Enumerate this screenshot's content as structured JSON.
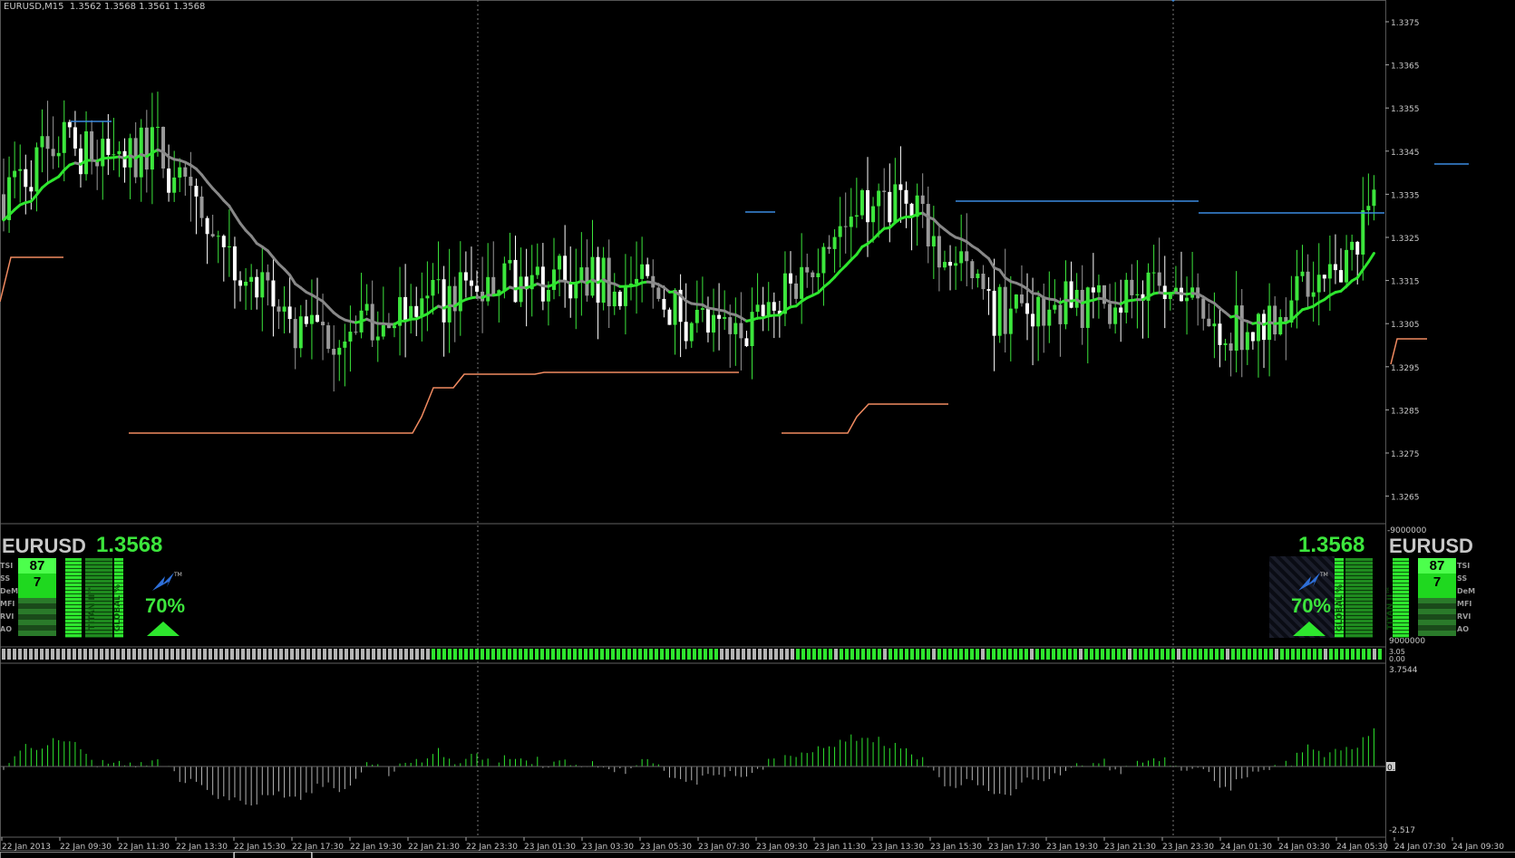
{
  "header": {
    "symbol_tf": "EURUSD,M15",
    "ohlc": "1.3562 1.3568 1.3561 1.3568"
  },
  "price_axis": [
    "1.3375",
    "1.3365",
    "1.3355",
    "1.3345",
    "1.3335",
    "1.3325",
    "1.3315",
    "1.3305",
    "1.3295",
    "1.3285",
    "1.3275",
    "1.3265"
  ],
  "mid_axis": {
    "top": "-9000000",
    "bottom": "9000000"
  },
  "strip_axis": [
    "3.05",
    "0.00"
  ],
  "osc_axis": {
    "top": "3.7544",
    "zero": "0.00",
    "bottom": "-2.517"
  },
  "time_axis": [
    "22 Jan 2013",
    "22 Jan 09:30",
    "22 Jan 11:30",
    "22 Jan 13:30",
    "22 Jan 15:30",
    "22 Jan 17:30",
    "22 Jan 19:30",
    "22 Jan 21:30",
    "22 Jan 23:30",
    "23 Jan 01:30",
    "23 Jan 03:30",
    "23 Jan 05:30",
    "23 Jan 07:30",
    "23 Jan 09:30",
    "23 Jan 11:30",
    "23 Jan 13:30",
    "23 Jan 15:30",
    "23 Jan 17:30",
    "23 Jan 19:30",
    "23 Jan 21:30",
    "23 Jan 23:30",
    "24 Jan 01:30",
    "24 Jan 03:30",
    "24 Jan 05:30",
    "24 Jan 07:30",
    "24 Jan 09:30"
  ],
  "panel_left": {
    "symbol": "EURUSD",
    "price": "1.3568",
    "score_top": "87",
    "score_bottom": "7",
    "percent": "70%",
    "labels": [
      "TITAN II™",
      "GLOBAL %"
    ],
    "rows": [
      "TSI",
      "SS",
      "DeM",
      "MFI",
      "RVI",
      "AO"
    ]
  },
  "panel_right": {
    "symbol": "EURUSD",
    "price": "1.3568",
    "score_top": "87",
    "score_bottom": "7",
    "percent": "70%",
    "labels": [
      "GLOBAL %",
      "TITAN II™"
    ],
    "rows": [
      "TSI",
      "SS",
      "DeM",
      "MFI",
      "RVI",
      "AO"
    ]
  },
  "colors": {
    "bull": "#3ce63c",
    "bear": "#ffffff",
    "ma": "#888888",
    "resistance": "#3a8ae0",
    "support": "#f08a60",
    "grid": "#606060"
  },
  "icons": {
    "logo": "lightning-logo-icon",
    "trend": "triangle-up-icon"
  }
}
